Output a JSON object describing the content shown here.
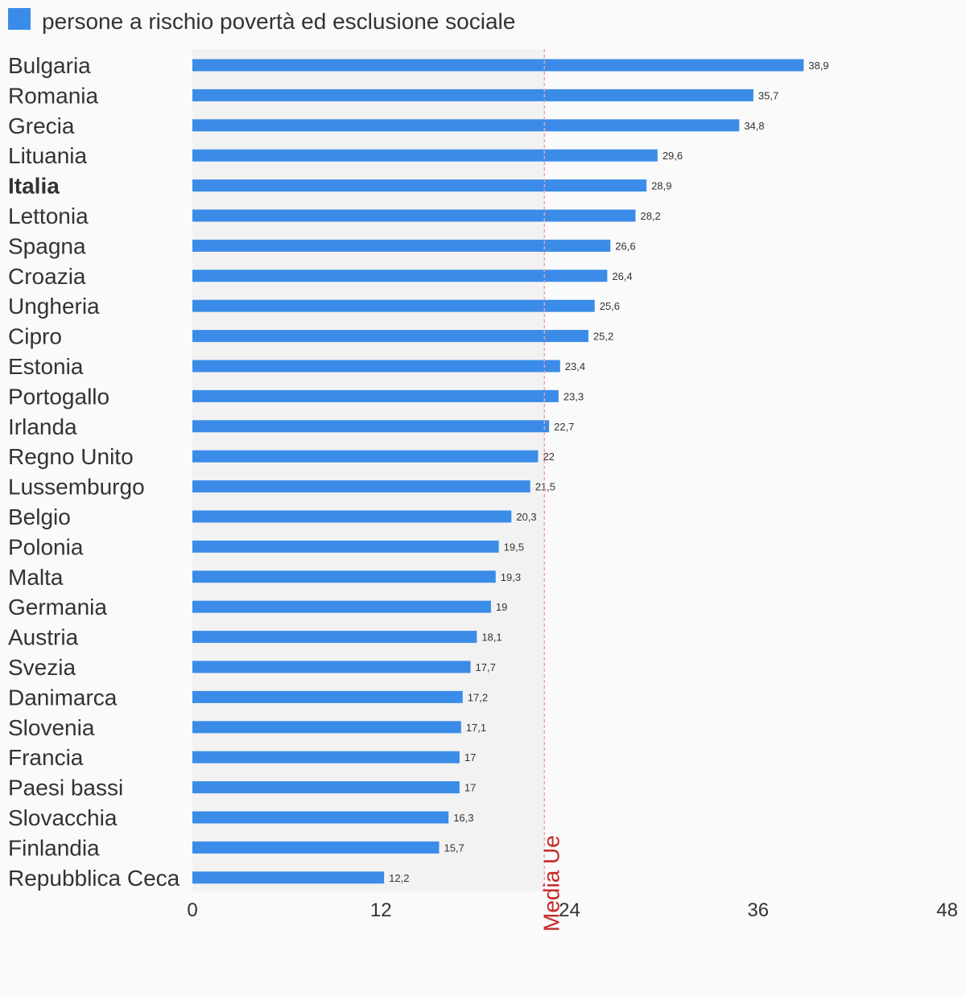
{
  "chart_data": {
    "type": "bar",
    "orientation": "horizontal",
    "legend": {
      "label": "persone a rischio povertà ed esclusione sociale",
      "color": "#3a8ce8",
      "position": "top-left"
    },
    "series": [
      {
        "name": "persone a rischio povertà ed esclusione sociale",
        "color": "#3a8ce8",
        "values": [
          38.9,
          35.7,
          34.8,
          29.6,
          28.9,
          28.2,
          26.6,
          26.4,
          25.6,
          25.2,
          23.4,
          23.3,
          22.7,
          22,
          21.5,
          20.3,
          19.5,
          19.3,
          19,
          18.1,
          17.7,
          17.2,
          17.1,
          17,
          17,
          16.3,
          15.7,
          12.2
        ],
        "value_labels": [
          "38,9",
          "35,7",
          "34,8",
          "29,6",
          "28,9",
          "28,2",
          "26,6",
          "26,4",
          "25,6",
          "25,2",
          "23,4",
          "23,3",
          "22,7",
          "22",
          "21,5",
          "20,3",
          "19,5",
          "19,3",
          "19",
          "18,1",
          "17,7",
          "17,2",
          "17,1",
          "17",
          "17",
          "16,3",
          "15,7",
          "12,2"
        ]
      }
    ],
    "categories": [
      "Bulgaria",
      "Romania",
      "Grecia",
      "Lituania",
      "Italia",
      "Lettonia",
      "Spagna",
      "Croazia",
      "Ungheria",
      "Cipro",
      "Estonia",
      "Portogallo",
      "Irlanda",
      "Regno Unito",
      "Lussemburgo",
      "Belgio",
      "Polonia",
      "Malta",
      "Germania",
      "Austria",
      "Svezia",
      "Danimarca",
      "Slovenia",
      "Francia",
      "Paesi bassi",
      "Slovacchia",
      "Finlandia",
      "Repubblica Ceca"
    ],
    "highlighted_category": "Italia",
    "x_axis": {
      "min": 0,
      "max": 48,
      "ticks": [
        0,
        12,
        24,
        36,
        48
      ]
    },
    "reference_line": {
      "label": "Media Ue",
      "value": 22.4,
      "color": "#c62828",
      "style": "dashed"
    },
    "shaded_region": {
      "from": 0,
      "to": 22.4,
      "color": "#f2f2f2"
    },
    "grid": false
  }
}
